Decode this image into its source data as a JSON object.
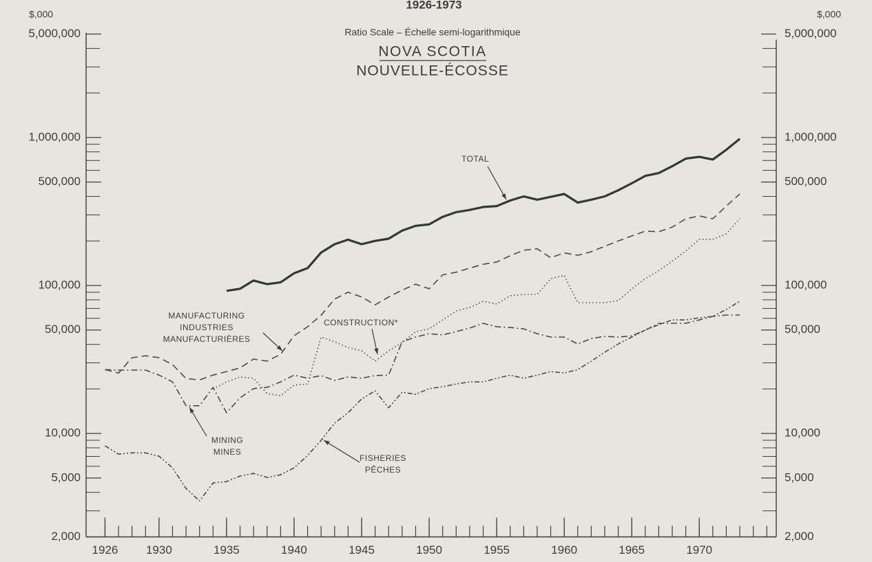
{
  "chart_data": {
    "type": "line",
    "title": "1926-1973",
    "subtitle": "Ratio Scale – Échelle semi-logarithmique",
    "region_en": "NOVA SCOTIA",
    "region_fr": "NOUVELLE-ÉCOSSE",
    "y_unit": "$,000",
    "y2_unit": "$,000",
    "log_y": true,
    "ylim": [
      2000,
      5000000
    ],
    "yticks": [
      {
        "value": 5000000,
        "label": "5,000,000"
      },
      {
        "value": 1000000,
        "label": "1,000,000"
      },
      {
        "value": 500000,
        "label": "500,000"
      },
      {
        "value": 100000,
        "label": "100,000"
      },
      {
        "value": 50000,
        "label": "50,000"
      },
      {
        "value": 10000,
        "label": "10,000"
      },
      {
        "value": 5000,
        "label": "5,000"
      },
      {
        "value": 2000,
        "label": "2,000"
      }
    ],
    "yminor_ticks": [
      3000,
      4000,
      6000,
      7000,
      8000,
      9000,
      20000,
      30000,
      40000,
      60000,
      70000,
      80000,
      90000,
      200000,
      300000,
      400000,
      600000,
      700000,
      800000,
      900000,
      2000000,
      3000000,
      4000000
    ],
    "xlim": [
      1924.6,
      1975.7
    ],
    "xticks": [
      1926,
      1930,
      1935,
      1940,
      1945,
      1950,
      1955,
      1960,
      1965,
      1970
    ],
    "xminor_ticks": [
      1926,
      1927,
      1928,
      1929,
      1930,
      1931,
      1932,
      1933,
      1934,
      1935,
      1936,
      1937,
      1938,
      1939,
      1940,
      1941,
      1942,
      1943,
      1944,
      1945,
      1946,
      1947,
      1948,
      1949,
      1950,
      1951,
      1952,
      1953,
      1954,
      1955,
      1956,
      1957,
      1958,
      1959,
      1960,
      1961,
      1962,
      1963,
      1964,
      1965,
      1966,
      1967,
      1968,
      1969,
      1970,
      1971,
      1972,
      1973,
      1974,
      1975
    ],
    "x": [
      1926,
      1927,
      1928,
      1929,
      1930,
      1931,
      1932,
      1933,
      1934,
      1935,
      1936,
      1937,
      1938,
      1939,
      1940,
      1941,
      1942,
      1943,
      1944,
      1945,
      1946,
      1947,
      1948,
      1949,
      1950,
      1951,
      1952,
      1953,
      1954,
      1955,
      1956,
      1957,
      1958,
      1959,
      1960,
      1961,
      1962,
      1963,
      1964,
      1965,
      1966,
      1967,
      1968,
      1969,
      1970,
      1971,
      1972,
      1973
    ],
    "series": [
      {
        "label": [
          "TOTAL"
        ],
        "color": "#2f3a33",
        "width": 3.2,
        "dash": "none",
        "values": [
          null,
          null,
          null,
          null,
          null,
          null,
          null,
          null,
          null,
          92000,
          95000,
          108000,
          102000,
          105000,
          121000,
          131000,
          167000,
          190000,
          204000,
          190000,
          200000,
          207000,
          235000,
          253000,
          259000,
          291000,
          313000,
          324000,
          339000,
          344000,
          375000,
          400000,
          380000,
          397000,
          415000,
          363000,
          380000,
          400000,
          440000,
          490000,
          550000,
          575000,
          640000,
          720000,
          740000,
          710000,
          825000,
          980000
        ]
      },
      {
        "label": [
          "MANUFACTURING",
          "INDUSTRIES",
          "MANUFACTURIÈRES"
        ],
        "color": "#4a4a48",
        "width": 1.6,
        "dash": "10,6",
        "values": [
          27000,
          25600,
          32500,
          33500,
          32500,
          29200,
          23500,
          23000,
          24800,
          26200,
          27700,
          31800,
          30800,
          34300,
          45800,
          52600,
          63000,
          80900,
          90000,
          83600,
          74000,
          83600,
          93000,
          102000,
          95000,
          118000,
          123000,
          131000,
          139000,
          144000,
          159000,
          173000,
          177000,
          154000,
          166000,
          160000,
          169000,
          184000,
          200000,
          216000,
          233000,
          231000,
          248000,
          282000,
          295000,
          282000,
          344000,
          415000
        ]
      },
      {
        "label": [
          "CONSTRUCTION*"
        ],
        "color": "#4a4a48",
        "width": 1.6,
        "dash": "1.5,3.5",
        "values": [
          null,
          null,
          null,
          null,
          null,
          null,
          null,
          null,
          20000,
          22300,
          24100,
          23600,
          18600,
          18000,
          21200,
          21600,
          44800,
          41600,
          38100,
          36200,
          30800,
          36200,
          41100,
          48800,
          50900,
          58500,
          67300,
          71000,
          78200,
          74900,
          85200,
          87000,
          87000,
          111000,
          117000,
          76500,
          76500,
          76500,
          79000,
          94800,
          111000,
          126000,
          146000,
          171000,
          205000,
          205000,
          223000,
          283000
        ]
      },
      {
        "label": [
          "MINING",
          "MINES"
        ],
        "color": "#4a4a48",
        "width": 1.6,
        "dash": "9,4,2,4",
        "values": [
          27000,
          26800,
          26800,
          26800,
          24800,
          22300,
          15400,
          15400,
          20500,
          13800,
          17400,
          20100,
          20500,
          22300,
          24800,
          23600,
          24600,
          22800,
          24100,
          23600,
          24600,
          24800,
          41600,
          44800,
          47200,
          46300,
          48800,
          51500,
          55500,
          52600,
          52000,
          50900,
          47200,
          44800,
          44800,
          40200,
          43800,
          45300,
          44800,
          45700,
          49900,
          55500,
          55500,
          55500,
          58500,
          61800,
          63100,
          63100
        ]
      },
      {
        "label": [
          "FISHERIES",
          "PÊCHES"
        ],
        "color": "#4a4a48",
        "width": 1.6,
        "dash": "7,3,2,3,2,3",
        "values": [
          8250,
          7250,
          7400,
          7400,
          7020,
          5860,
          4250,
          3500,
          4630,
          4730,
          5150,
          5370,
          5040,
          5260,
          5860,
          7100,
          8990,
          11740,
          13800,
          17100,
          19400,
          14900,
          19000,
          18400,
          20100,
          20700,
          21600,
          22300,
          22300,
          23600,
          24800,
          23600,
          24800,
          26200,
          25600,
          27000,
          30800,
          35400,
          40200,
          44800,
          49900,
          54300,
          58500,
          58500,
          60500,
          61800,
          68800,
          78200
        ]
      }
    ]
  }
}
